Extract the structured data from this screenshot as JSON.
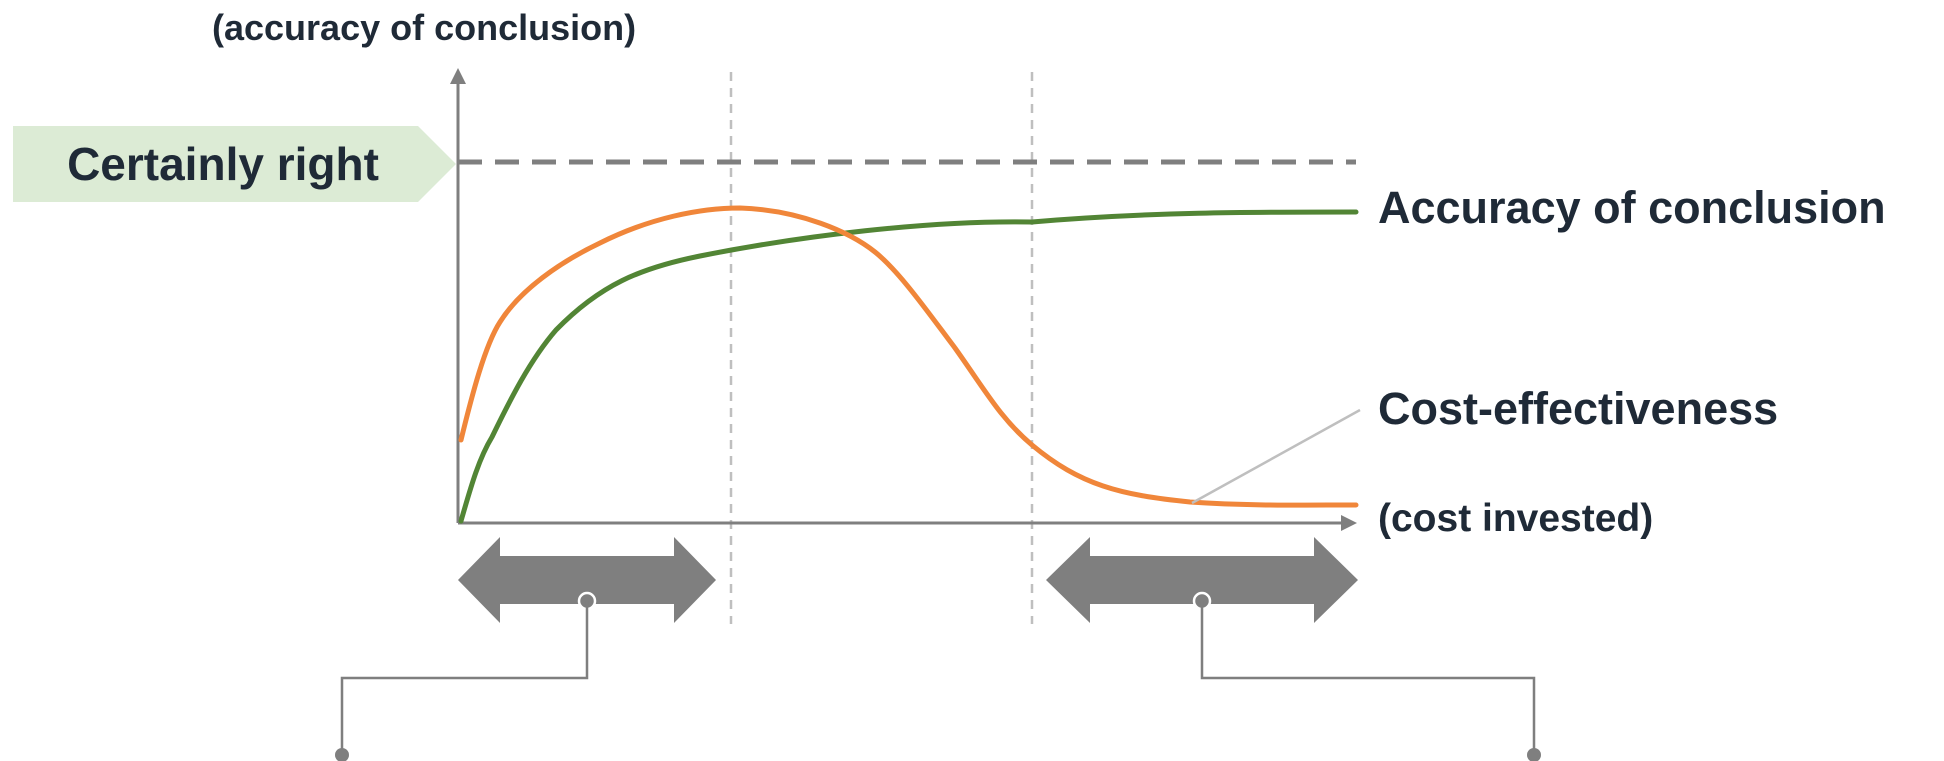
{
  "y_axis_label": "(accuracy of conclusion)",
  "x_axis_label": "(cost invested)",
  "certainly_right_label": "Certainly right",
  "series": [
    {
      "name": "Accuracy of conclusion",
      "color": "#528535"
    },
    {
      "name": "Cost-effectiveness",
      "color": "#f0863a"
    }
  ],
  "colors": {
    "axis": "#7f7f7f",
    "reference_line": "#7f7f7f",
    "divider": "#bfbfbf",
    "arrow": "#7f7f7f",
    "callout": "#7f7f7f",
    "leader_line": "#bfbfbf",
    "badge_fill": "#dcebd5",
    "text": "#1f2a37"
  },
  "icons": {
    "left_range": "double-arrow-icon",
    "right_range": "double-arrow-icon"
  }
}
